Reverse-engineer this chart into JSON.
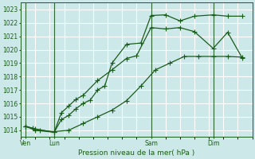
{
  "xlabel": "Pression niveau de la mer( hPa )",
  "ylim": [
    1013.5,
    1023.5
  ],
  "yticks": [
    1014,
    1015,
    1016,
    1017,
    1018,
    1019,
    1020,
    1021,
    1022,
    1023
  ],
  "xlim": [
    0,
    16
  ],
  "bg_color": "#cce8e8",
  "grid_color": "#ffffff",
  "line_color": "#1a5c1a",
  "sep_color": "#336633",
  "day_labels": [
    "Ven",
    "Lun",
    "Sam",
    "Dim"
  ],
  "day_positions": [
    0.3,
    2.3,
    9.0,
    13.3
  ],
  "series1_x": [
    0.3,
    1.0,
    2.3,
    2.8,
    3.3,
    3.8,
    4.3,
    5.3,
    6.3,
    7.3,
    8.0,
    9.0,
    10.0,
    11.0,
    12.0,
    13.3,
    14.3,
    15.3
  ],
  "series1_y": [
    1014.3,
    1014.1,
    1013.85,
    1015.3,
    1015.8,
    1016.3,
    1016.6,
    1017.7,
    1018.5,
    1019.35,
    1019.55,
    1021.65,
    1021.55,
    1021.65,
    1021.35,
    1020.1,
    1021.3,
    1019.4
  ],
  "series2_x": [
    0.3,
    1.0,
    2.3,
    2.8,
    3.3,
    3.8,
    4.3,
    4.8,
    5.3,
    5.8,
    6.3,
    7.3,
    8.3,
    9.0,
    10.0,
    11.0,
    12.0,
    13.3,
    14.3,
    15.3
  ],
  "series2_y": [
    1014.3,
    1014.0,
    1013.85,
    1014.8,
    1015.1,
    1015.6,
    1016.0,
    1016.25,
    1017.0,
    1017.3,
    1019.0,
    1020.4,
    1020.5,
    1022.55,
    1022.6,
    1022.15,
    1022.5,
    1022.6,
    1022.5,
    1022.5
  ],
  "series3_x": [
    0.3,
    0.8,
    1.3,
    2.3,
    3.3,
    4.3,
    5.3,
    6.3,
    7.3,
    8.3,
    9.3,
    10.3,
    11.3,
    12.3,
    13.3,
    14.3,
    15.3
  ],
  "series3_y": [
    1014.3,
    1014.15,
    1014.0,
    1013.9,
    1014.0,
    1014.5,
    1015.0,
    1015.5,
    1016.2,
    1017.3,
    1018.5,
    1019.0,
    1019.5,
    1019.5,
    1019.5,
    1019.5,
    1019.45
  ]
}
